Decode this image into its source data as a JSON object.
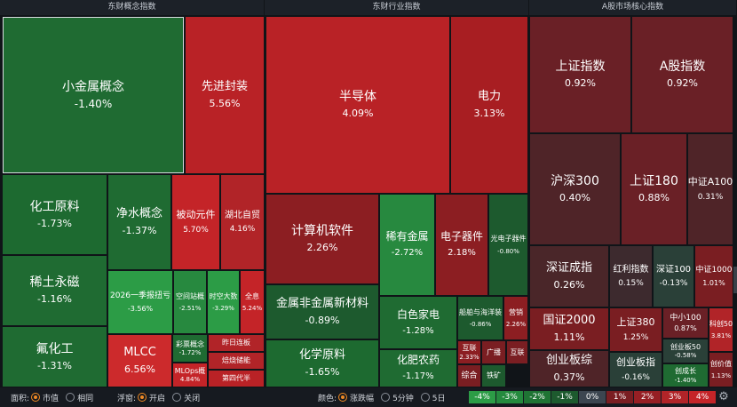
{
  "headers": {
    "concept": "东财概念指数",
    "industry": "东财行业指数",
    "core": "A股市场核心指数"
  },
  "tiles": [
    {
      "id": "xiaojinshu",
      "name": "小金属概念",
      "value": "-1.40%",
      "color": "#1f6b32"
    },
    {
      "id": "xianjinfengzhuang",
      "name": "先进封装",
      "value": "5.56%",
      "color": "#b92226"
    },
    {
      "id": "huagongyuanliao",
      "name": "化工原料",
      "value": "-1.73%",
      "color": "#1d6a30"
    },
    {
      "id": "jingshui",
      "name": "净水概念",
      "value": "-1.37%",
      "color": "#1f6b32"
    },
    {
      "id": "beidongyuanjian",
      "name": "被动元件",
      "value": "5.70%",
      "color": "#c42428"
    },
    {
      "id": "hubeiziyou",
      "name": "湖北自贸",
      "value": "4.16%",
      "color": "#b12428"
    },
    {
      "id": "xitu",
      "name": "稀土永磁",
      "value": "-1.16%",
      "color": "#1f6b32"
    },
    {
      "id": "jibaoniukui",
      "name": "2026一季报扭亏",
      "value": "-3.56%",
      "color": "#2c9c46"
    },
    {
      "id": "kongjianzhanjia",
      "name": "空间站概",
      "value": "-2.51%",
      "color": "#27893f"
    },
    {
      "id": "shidaishuju",
      "name": "时空大数",
      "value": "-3.29%",
      "color": "#2c9c46"
    },
    {
      "id": "quanyi",
      "name": "全息",
      "value": "5.24%",
      "color": "#c42428"
    },
    {
      "id": "fuhuagong",
      "name": "氟化工",
      "value": "-1.31%",
      "color": "#1f6b32"
    },
    {
      "id": "mlcc",
      "name": "MLCC",
      "value": "6.56%",
      "color": "#cc2a2c"
    },
    {
      "id": "caipiao",
      "name": "彩票概念",
      "value": "-1.72%",
      "color": "#1f6b32"
    },
    {
      "id": "mlops",
      "name": "MLOps概",
      "value": "4.84%",
      "color": "#c42428"
    },
    {
      "id": "zuoriliangban",
      "name": "昨日连板",
      "value": "",
      "color": "#b12428"
    },
    {
      "id": "peijin",
      "name": "焙烧储能",
      "value": "",
      "color": "#b12428"
    },
    {
      "id": "disidai",
      "name": "第四代半",
      "value": "",
      "color": "#b92226"
    },
    {
      "id": "bandaoti",
      "name": "半导体",
      "value": "4.09%",
      "color": "#b92226"
    },
    {
      "id": "dianli",
      "name": "电力",
      "value": "3.13%",
      "color": "#a81e22"
    },
    {
      "id": "jisuanji",
      "name": "计算机软件",
      "value": "2.26%",
      "color": "#8c1e22"
    },
    {
      "id": "xiyoujinshu",
      "name": "稀有金属",
      "value": "-2.72%",
      "color": "#27893f"
    },
    {
      "id": "dianziqijian",
      "name": "电子器件",
      "value": "2.18%",
      "color": "#8c1e22"
    },
    {
      "id": "guangdianziqijian",
      "name": "光电子器件",
      "value": "-0.80%",
      "color": "#1d5a2e"
    },
    {
      "id": "jinshufeijin",
      "name": "金属非金属新材料",
      "value": "-0.89%",
      "color": "#1d5a2e"
    },
    {
      "id": "baisejiadian",
      "name": "白色家电",
      "value": "-1.28%",
      "color": "#1f6b32"
    },
    {
      "id": "chuanbo",
      "name": "船舶与海洋装",
      "value": "-0.86%",
      "color": "#1d5a2e"
    },
    {
      "id": "yingxiao",
      "name": "营销",
      "value": "2.26%",
      "color": "#8c1e22"
    },
    {
      "id": "hulian",
      "name": "互联",
      "value": "2.33%",
      "color": "#8c1e22"
    },
    {
      "id": "guangbo",
      "name": "广播",
      "value": "",
      "color": "#7a1e22"
    },
    {
      "id": "hulian2",
      "name": "互联",
      "value": "",
      "color": "#7a1e22"
    },
    {
      "id": "huaxueyuanliao",
      "name": "化学原料",
      "value": "-1.65%",
      "color": "#1d6a30"
    },
    {
      "id": "huafeinongyao",
      "name": "化肥农药",
      "value": "-1.17%",
      "color": "#1f6b32"
    },
    {
      "id": "zonghe",
      "name": "综合",
      "value": "",
      "color": "#7a1e22"
    },
    {
      "id": "tiekuang",
      "name": "铁矿",
      "value": "",
      "color": "#1d5a2e"
    },
    {
      "id": "shangzheng",
      "name": "上证指数",
      "value": "0.92%",
      "color": "#6a2026"
    },
    {
      "id": "agu",
      "name": "A股指数",
      "value": "0.92%",
      "color": "#6a2026"
    },
    {
      "id": "hushen300",
      "name": "沪深300",
      "value": "0.40%",
      "color": "#4f2428"
    },
    {
      "id": "shangzheng180",
      "name": "上证180",
      "value": "0.88%",
      "color": "#6a2026"
    },
    {
      "id": "zhongzhenga100",
      "name": "中证A100",
      "value": "0.31%",
      "color": "#4f2428"
    },
    {
      "id": "shenzhengchengzhi",
      "name": "深证成指",
      "value": "0.26%",
      "color": "#4a2629"
    },
    {
      "id": "hongli",
      "name": "红利指数",
      "value": "0.15%",
      "color": "#3d2a2e"
    },
    {
      "id": "shenzheng100",
      "name": "深证100",
      "value": "-0.13%",
      "color": "#2a4038"
    },
    {
      "id": "zhongzheng1000",
      "name": "中证1000",
      "value": "1.01%",
      "color": "#7a1e22"
    },
    {
      "id": "guozheng2000",
      "name": "国证2000",
      "value": "1.11%",
      "color": "#7a1e22"
    },
    {
      "id": "shangzheng380",
      "name": "上证380",
      "value": "1.25%",
      "color": "#7a1e22"
    },
    {
      "id": "zhongxiao100",
      "name": "中小100",
      "value": "0.87%",
      "color": "#6a2026"
    },
    {
      "id": "kechuang50",
      "name": "科创50",
      "value": "3.81%",
      "color": "#b12428"
    },
    {
      "id": "chuangye50",
      "name": "创业板50",
      "value": "-0.58%",
      "color": "#2a4038"
    },
    {
      "id": "chuangyebanzong",
      "name": "创业板综",
      "value": "0.37%",
      "color": "#4f2428"
    },
    {
      "id": "chuangyebanzhi",
      "name": "创业板指",
      "value": "-0.16%",
      "color": "#2a4038"
    },
    {
      "id": "chuangchangzhang",
      "name": "创成长",
      "value": "-1.40%",
      "color": "#1f6b32"
    },
    {
      "id": "chuangjiazhi",
      "name": "创价值",
      "value": "1.13%",
      "color": "#7a1e22"
    }
  ],
  "footer": {
    "area_label": "面积:",
    "area_opt1": "市值",
    "area_opt2": "相同",
    "float_label": "浮窗:",
    "float_opt1": "开启",
    "float_opt2": "关闭",
    "color_label": "颜色:",
    "color_opt1": "涨跌幅",
    "color_opt2": "5分钟",
    "color_opt3": "5日"
  },
  "legend": [
    {
      "label": "-4%",
      "color": "#2c9c46"
    },
    {
      "label": "-3%",
      "color": "#258a3e"
    },
    {
      "label": "-2%",
      "color": "#1f7434"
    },
    {
      "label": "-1%",
      "color": "#1d5a2e"
    },
    {
      "label": "0%",
      "color": "#3c4650"
    },
    {
      "label": "1%",
      "color": "#7a1e22"
    },
    {
      "label": "2%",
      "color": "#961f24"
    },
    {
      "label": "3%",
      "color": "#b12428"
    },
    {
      "label": "4%",
      "color": "#c42428"
    }
  ]
}
